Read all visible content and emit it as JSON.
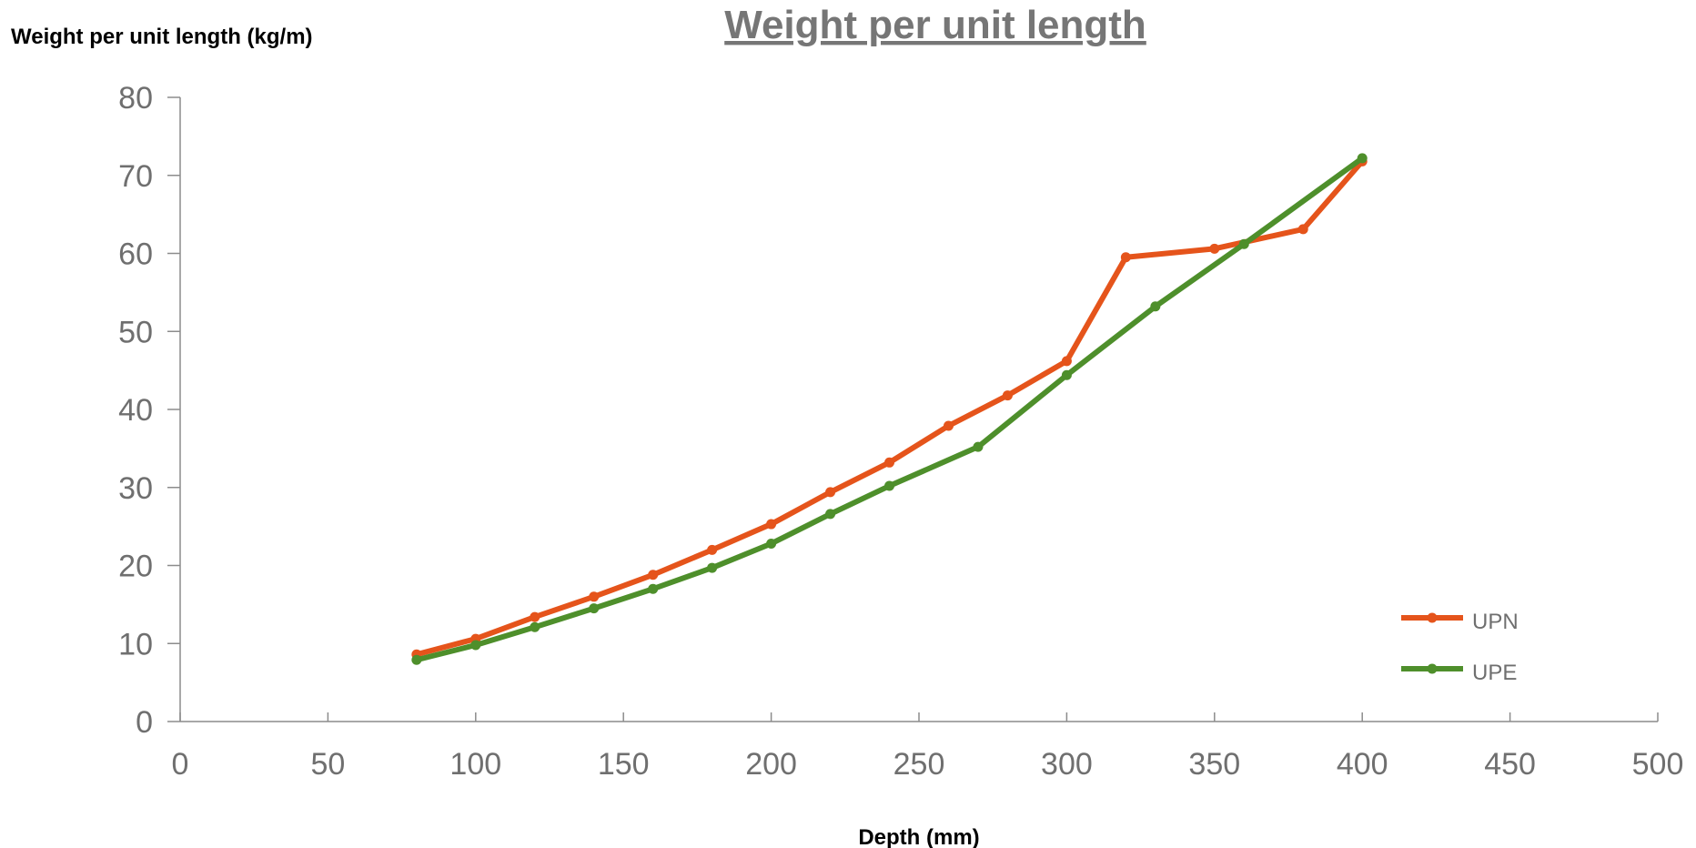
{
  "chart_data": {
    "type": "line",
    "title": "Weight per unit length",
    "xlabel": "Depth (mm)",
    "ylabel": "Weight per unit length (kg/m)",
    "xlim": [
      0,
      500
    ],
    "ylim": [
      0,
      80
    ],
    "xticks": [
      0,
      50,
      100,
      150,
      200,
      250,
      300,
      350,
      400,
      450,
      500
    ],
    "yticks": [
      0,
      10,
      20,
      30,
      40,
      50,
      60,
      70,
      80
    ],
    "grid": false,
    "legend_position": "bottom-right",
    "series": [
      {
        "name": "UPN",
        "color": "#e5541b",
        "points": [
          [
            80,
            8.6
          ],
          [
            100,
            10.6
          ],
          [
            120,
            13.4
          ],
          [
            140,
            16.0
          ],
          [
            160,
            18.8
          ],
          [
            180,
            22.0
          ],
          [
            200,
            25.3
          ],
          [
            220,
            29.4
          ],
          [
            240,
            33.2
          ],
          [
            260,
            37.9
          ],
          [
            280,
            41.8
          ],
          [
            300,
            46.2
          ],
          [
            320,
            59.5
          ],
          [
            350,
            60.6
          ],
          [
            380,
            63.1
          ],
          [
            400,
            71.8
          ]
        ]
      },
      {
        "name": "UPE",
        "color": "#4e8f2b",
        "points": [
          [
            80,
            7.9
          ],
          [
            100,
            9.8
          ],
          [
            120,
            12.1
          ],
          [
            140,
            14.5
          ],
          [
            160,
            17.0
          ],
          [
            180,
            19.7
          ],
          [
            200,
            22.8
          ],
          [
            220,
            26.6
          ],
          [
            240,
            30.2
          ],
          [
            270,
            35.2
          ],
          [
            300,
            44.4
          ],
          [
            330,
            53.2
          ],
          [
            360,
            61.2
          ],
          [
            400,
            72.2
          ]
        ]
      }
    ]
  }
}
